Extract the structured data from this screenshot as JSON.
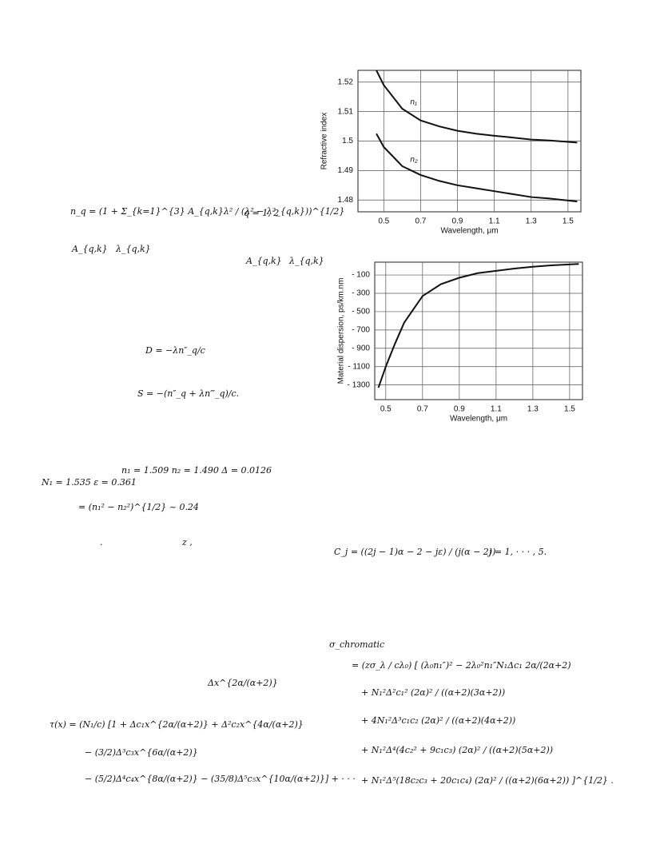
{
  "chart_data": [
    {
      "type": "line",
      "xlabel": "Wavelength, μm",
      "ylabel": "Refractive index",
      "x": [
        0.46,
        0.5,
        0.6,
        0.7,
        0.8,
        0.9,
        1.0,
        1.1,
        1.2,
        1.3,
        1.4,
        1.55
      ],
      "series": [
        {
          "name": "n₁",
          "color": "#111111",
          "values": [
            1.524,
            1.519,
            1.511,
            1.507,
            1.505,
            1.5035,
            1.5025,
            1.5018,
            1.5012,
            1.5005,
            1.5002,
            1.4995
          ]
        },
        {
          "name": "n₂",
          "color": "#111111",
          "values": [
            1.5025,
            1.498,
            1.4915,
            1.4885,
            1.4865,
            1.485,
            1.484,
            1.483,
            1.482,
            1.481,
            1.4805,
            1.4795
          ]
        }
      ],
      "xlim": [
        0.36,
        1.57
      ],
      "ylim": [
        1.476,
        1.524
      ],
      "xticks": [
        0.5,
        0.7,
        0.9,
        1.1,
        1.3,
        1.5
      ],
      "yticks": [
        1.48,
        1.49,
        1.5,
        1.51,
        1.52
      ],
      "grid": true
    },
    {
      "type": "line",
      "xlabel": "Wavelength, μm",
      "ylabel": "Material dispersion, ps/km.nm",
      "x": [
        0.46,
        0.5,
        0.55,
        0.6,
        0.7,
        0.8,
        0.9,
        1.0,
        1.1,
        1.2,
        1.3,
        1.4,
        1.55
      ],
      "series": [
        {
          "color": "#111111",
          "values": [
            -1330,
            -1100,
            -850,
            -620,
            -330,
            -200,
            -130,
            -80,
            -55,
            -30,
            -10,
            5,
            20
          ]
        }
      ],
      "xlim": [
        0.44,
        1.57
      ],
      "ylim": [
        -1460,
        40
      ],
      "xticks": [
        0.5,
        0.7,
        0.9,
        1.1,
        1.3,
        1.5
      ],
      "yticks": [
        {
          "value": -100,
          "label": "- 100"
        },
        {
          "value": -300,
          "label": "- 300"
        },
        {
          "value": -500,
          "label": "- 500"
        },
        {
          "value": -700,
          "label": "- 700"
        },
        {
          "value": -900,
          "label": "- 900"
        },
        {
          "value": -1100,
          "label": "- 1100"
        },
        {
          "value": -1300,
          "label": "- 1300"
        }
      ],
      "grid": true
    }
  ],
  "equations": [
    "n_q = (1 + Σ_{k=1}^{3} A_{q,k}λ² / (λ² − λ²_{q,k}))^{1/2}",
    "q = 1, 2",
    "A_{q,k}",
    "λ_{q,k}",
    "A_{q,k}",
    "λ_{q,k}",
    "D = −λn″_q/c",
    "S = −(n″_q + λn‴_q)/c.",
    "n₁ = 1.509  n₂ = 1.490  Δ = 0.0126",
    "N₁ = 1.535    ε = 0.361",
    "= (n₁² − n₂²)^{1/2} ~ 0.24",
    ".",
    "z ,",
    "C_j = ((2j − 1)α − 2 − jε) / (j(α − 2))",
    "j = 1, · · · , 5.",
    "Δx^{2α/(α+2)}",
    "τ(x) = (N₁/c) [1 + Δc₁x^{2α/(α+2)} + Δ²c₂x^{4α/(α+2)}",
    "− (3/2)Δ³c₃x^{6α/(α+2)}",
    "− (5/2)Δ⁴c₄x^{8α/(α+2)} − (35/8)Δ⁵c₅x^{10α/(α+2)}] + · · ·",
    "σ_chromatic",
    "= (zσ_λ / cλ₀) [ (λ₀n₁″)² − 2λ₀²n₁″N₁Δc₁ 2α/(2α+2)",
    "+ N₁²Δ²c₁² (2α)² / ((α+2)(3α+2))",
    "+ 4N₁²Δ³c₁c₂ (2α)² / ((α+2)(4α+2))",
    "+ N₁²Δ⁴(4c₂² + 9c₁c₃) (2α)² / ((α+2)(5α+2))",
    "+ N₁²Δ⁵(18c₂c₃ + 20c₁c₄) (2α)² / ((α+2)(6α+2)) ]^{1/2} ."
  ]
}
